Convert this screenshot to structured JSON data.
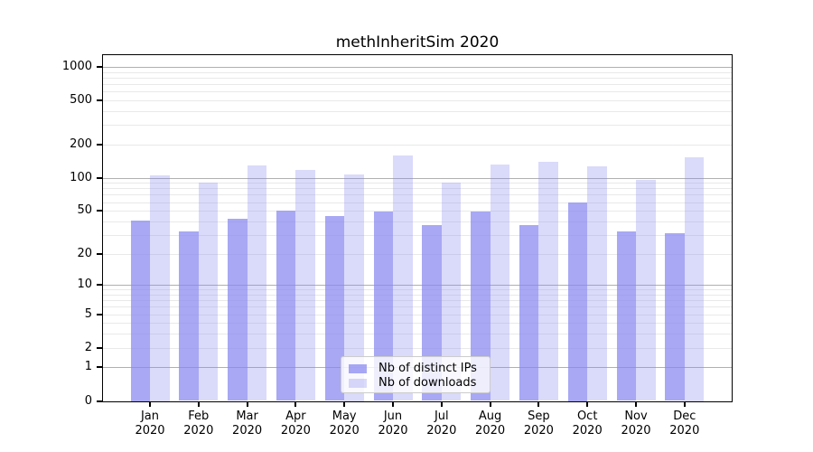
{
  "chart_data": {
    "type": "bar",
    "title": "methInheritSim 2020",
    "categories": [
      "Jan 2020",
      "Feb 2020",
      "Mar 2020",
      "Apr 2020",
      "May 2020",
      "Jun 2020",
      "Jul 2020",
      "Aug 2020",
      "Sep 2020",
      "Oct 2020",
      "Nov 2020",
      "Dec 2020"
    ],
    "series": [
      {
        "name": "Nb of distinct IPs",
        "values": [
          41,
          32,
          42,
          50,
          45,
          49,
          37,
          49,
          37,
          60,
          32,
          31
        ]
      },
      {
        "name": "Nb of downloads",
        "values": [
          106,
          91,
          129,
          117,
          108,
          158,
          90,
          131,
          139,
          127,
          96,
          153
        ]
      }
    ],
    "xlabel": "",
    "ylabel": "",
    "y_scale": "log10(value+1)",
    "y_ticks": [
      0,
      1,
      2,
      5,
      10,
      20,
      50,
      100,
      200,
      500,
      1000
    ],
    "ylim": [
      0,
      1290
    ],
    "grid": "on",
    "legend_position": "bottom-center-inside",
    "colors": {
      "bar_distinct_ips": "rgba(134,134,240,0.72)",
      "bar_downloads": "rgba(134,134,240,0.31)",
      "bar_distinct_ips_hex": "#a9a9f4",
      "bar_downloads_hex": "#d9d9f8",
      "grid_major": "#b0b0b0",
      "grid_minor": "#e9e9e9",
      "axis": "#000000"
    }
  },
  "legend": {
    "items": [
      {
        "label": "Nb of distinct IPs"
      },
      {
        "label": "Nb of downloads"
      }
    ]
  }
}
